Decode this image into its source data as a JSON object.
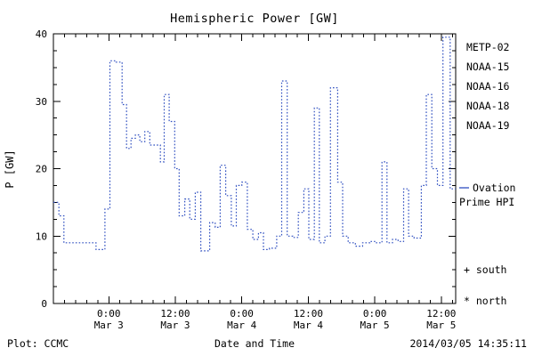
{
  "title": "Hemispheric Power [GW]",
  "footer": {
    "plot_credit": "Plot: CCMC",
    "timestamp": "2014/03/05 14:35:11"
  },
  "legend": {
    "satellites": [
      {
        "label": "METP-02",
        "color": "#000000"
      },
      {
        "label": "NOAA-15",
        "color": "#2f4fc0"
      },
      {
        "label": "NOAA-16",
        "color": "#3cc8e6"
      },
      {
        "label": "NOAA-18",
        "color": "#93d893"
      },
      {
        "label": "NOAA-19",
        "color": "#f0a040"
      }
    ],
    "line_key": {
      "line1": "Ovation",
      "line2": "Prime HPI",
      "dash_color": "#2f4fc0"
    },
    "marker_south": "+ south",
    "marker_north": "* north"
  },
  "chart_data": {
    "type": "line",
    "subtype": "step-after dotted line",
    "title": "Hemispheric Power [GW]",
    "xlabel": "Date and Time",
    "ylabel": "P [GW]",
    "ylim": [
      0,
      40
    ],
    "y_ticks": [
      0,
      10,
      20,
      30,
      40
    ],
    "line_color": "#2f4fc0",
    "x_unit": "hours from left edge of plot (left edge approx 2014-03-02 14:00)",
    "x_range": [
      0,
      72.6
    ],
    "x_ticks": [
      {
        "t": 10,
        "line1": "0:00",
        "line2": "Mar 3"
      },
      {
        "t": 22,
        "line1": "12:00",
        "line2": "Mar 3"
      },
      {
        "t": 34,
        "line1": "0:00",
        "line2": "Mar 4"
      },
      {
        "t": 46,
        "line1": "12:00",
        "line2": "Mar 4"
      },
      {
        "t": 58,
        "line1": "0:00",
        "line2": "Mar 5"
      },
      {
        "t": 70,
        "line1": "12:00",
        "line2": "Mar 5"
      }
    ],
    "points": [
      [
        0,
        15
      ],
      [
        1.0,
        13
      ],
      [
        1.9,
        9
      ],
      [
        7.7,
        8
      ],
      [
        9.3,
        14
      ],
      [
        10.2,
        36
      ],
      [
        11.3,
        35.8
      ],
      [
        12.4,
        29.5
      ],
      [
        13.2,
        23
      ],
      [
        14.0,
        24.5
      ],
      [
        14.8,
        25
      ],
      [
        15.6,
        24
      ],
      [
        16.5,
        25.5
      ],
      [
        17.4,
        23.5
      ],
      [
        19.3,
        21
      ],
      [
        20.0,
        31
      ],
      [
        20.9,
        27
      ],
      [
        21.9,
        20
      ],
      [
        22.7,
        13
      ],
      [
        23.7,
        15.5
      ],
      [
        24.6,
        12.5
      ],
      [
        25.6,
        16.5
      ],
      [
        26.6,
        7.8
      ],
      [
        28.2,
        12
      ],
      [
        29.2,
        11.3
      ],
      [
        30.1,
        20.5
      ],
      [
        31.1,
        16
      ],
      [
        32.1,
        11.5
      ],
      [
        33.0,
        17.5
      ],
      [
        34.0,
        18
      ],
      [
        35.0,
        11
      ],
      [
        36.0,
        9.5
      ],
      [
        37.0,
        10.5
      ],
      [
        37.9,
        8
      ],
      [
        39.0,
        8.2
      ],
      [
        40.3,
        10
      ],
      [
        41.2,
        33
      ],
      [
        42.2,
        10
      ],
      [
        43.2,
        9.8
      ],
      [
        44.2,
        13.5
      ],
      [
        45.2,
        17
      ],
      [
        46.1,
        9.5
      ],
      [
        47.1,
        29
      ],
      [
        48.0,
        9
      ],
      [
        49.0,
        10
      ],
      [
        50.0,
        32
      ],
      [
        51.3,
        18
      ],
      [
        52.2,
        10
      ],
      [
        53.2,
        9
      ],
      [
        54.5,
        8.5
      ],
      [
        55.8,
        9
      ],
      [
        57.1,
        9.2
      ],
      [
        58.0,
        9
      ],
      [
        59.3,
        21
      ],
      [
        60.2,
        9
      ],
      [
        61.2,
        9.5
      ],
      [
        62.2,
        9.2
      ],
      [
        63.2,
        17
      ],
      [
        64.1,
        10
      ],
      [
        65.1,
        9.7
      ],
      [
        66.4,
        17.5
      ],
      [
        67.3,
        31
      ],
      [
        68.3,
        20
      ],
      [
        69.3,
        17.5
      ],
      [
        70.3,
        39.5
      ],
      [
        71.6,
        17
      ],
      [
        72.6,
        17
      ]
    ]
  }
}
